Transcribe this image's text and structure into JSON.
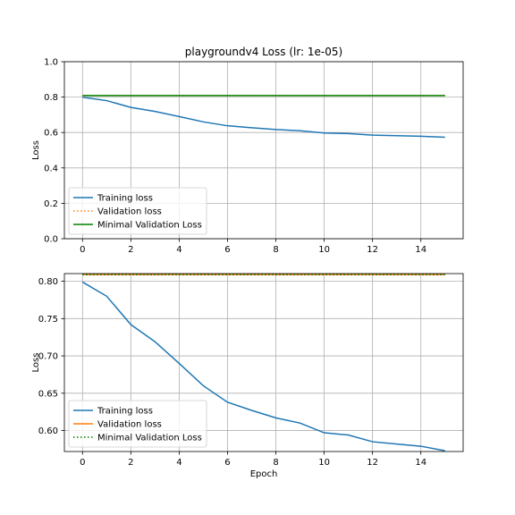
{
  "chart_data": [
    {
      "type": "line",
      "title": "playgroundv4 Loss (lr: 1e-05)",
      "xlabel": "",
      "ylabel": "Loss",
      "xlim": [
        -0.75,
        15.75
      ],
      "ylim": [
        0.0,
        1.0
      ],
      "xticks": [
        0,
        2,
        4,
        6,
        8,
        10,
        12,
        14
      ],
      "yticks": [
        0.0,
        0.2,
        0.4,
        0.6,
        0.8,
        1.0
      ],
      "ytick_labels": [
        "0.0",
        "0.2",
        "0.4",
        "0.6",
        "0.8",
        "1.0"
      ],
      "grid": true,
      "legend_position": "lower-left",
      "series": [
        {
          "name": "Training loss",
          "color": "#1f77b4",
          "style": "solid",
          "x": [
            0,
            1,
            2,
            3,
            4,
            5,
            6,
            7,
            8,
            9,
            10,
            11,
            12,
            13,
            14,
            15
          ],
          "values": [
            0.799,
            0.78,
            0.742,
            0.719,
            0.69,
            0.66,
            0.638,
            0.627,
            0.617,
            0.61,
            0.597,
            0.594,
            0.585,
            0.582,
            0.579,
            0.573
          ]
        },
        {
          "name": "Validation loss",
          "color": "#ff7f0e",
          "style": "dotted",
          "x": [
            0,
            1,
            2,
            3,
            4,
            5,
            6,
            7,
            8,
            9,
            10,
            11,
            12,
            13,
            14,
            15
          ],
          "values": [
            0.809,
            0.809,
            0.809,
            0.809,
            0.809,
            0.809,
            0.809,
            0.809,
            0.809,
            0.809,
            0.809,
            0.809,
            0.809,
            0.809,
            0.809,
            0.809
          ]
        },
        {
          "name": "Minimal Validation Loss",
          "color": "#008000",
          "style": "solid",
          "x": [
            0,
            15
          ],
          "values": [
            0.809,
            0.809
          ]
        }
      ]
    },
    {
      "type": "line",
      "title": "",
      "xlabel": "Epoch",
      "ylabel": "Loss",
      "xlim": [
        -0.75,
        15.75
      ],
      "ylim": [
        0.5719,
        0.8103
      ],
      "xticks": [
        0,
        2,
        4,
        6,
        8,
        10,
        12,
        14
      ],
      "yticks": [
        0.6,
        0.65,
        0.7,
        0.75,
        0.8
      ],
      "ytick_labels": [
        "0.60",
        "0.65",
        "0.70",
        "0.75",
        "0.80"
      ],
      "grid": true,
      "legend_position": "lower-left",
      "series": [
        {
          "name": "Training loss",
          "color": "#1f77b4",
          "style": "solid",
          "x": [
            0,
            1,
            2,
            3,
            4,
            5,
            6,
            7,
            8,
            9,
            10,
            11,
            12,
            13,
            14,
            15
          ],
          "values": [
            0.799,
            0.78,
            0.742,
            0.719,
            0.69,
            0.66,
            0.638,
            0.627,
            0.617,
            0.61,
            0.597,
            0.594,
            0.585,
            0.582,
            0.579,
            0.573
          ]
        },
        {
          "name": "Validation loss",
          "color": "#ff7f0e",
          "style": "solid",
          "x": [
            0,
            1,
            2,
            3,
            4,
            5,
            6,
            7,
            8,
            9,
            10,
            11,
            12,
            13,
            14,
            15
          ],
          "values": [
            0.809,
            0.809,
            0.809,
            0.809,
            0.809,
            0.809,
            0.809,
            0.809,
            0.809,
            0.809,
            0.809,
            0.809,
            0.809,
            0.809,
            0.809,
            0.809
          ]
        },
        {
          "name": "Minimal Validation Loss",
          "color": "#008000",
          "style": "dotted",
          "x": [
            0,
            15
          ],
          "values": [
            0.809,
            0.809
          ]
        }
      ]
    }
  ]
}
